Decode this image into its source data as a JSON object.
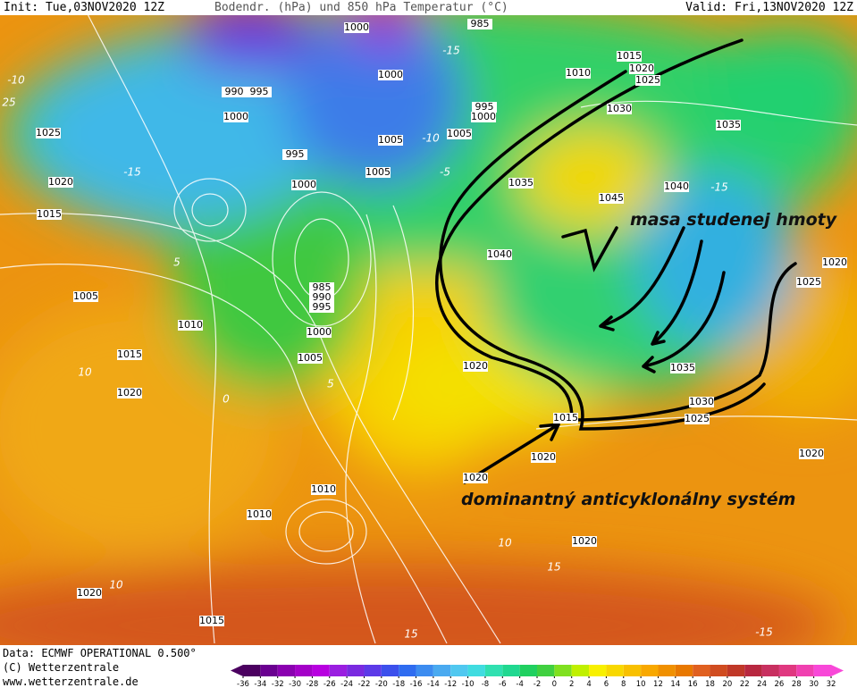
{
  "header": {
    "init": "Init: Tue,03NOV2020 12Z",
    "title": "Bodendr. (hPa) und 850 hPa Temperatur (°C)",
    "valid": "Valid: Fri,13NOV2020 12Z"
  },
  "isobar_labels": [
    "985",
    "1000",
    "1000",
    "1010",
    "1015",
    "1020",
    "1025",
    "990",
    "995",
    "1000",
    "995",
    "1000",
    "1030",
    "1035",
    "1025",
    "1005",
    "1005",
    "995",
    "1005",
    "1000",
    "1020",
    "1035",
    "1040",
    "1045",
    "1015",
    "1040",
    "1020",
    "1025",
    "985",
    "990",
    "995",
    "1005",
    "1010",
    "1000",
    "1015",
    "1005",
    "1020",
    "1035",
    "1020",
    "1030",
    "1025",
    "1015",
    "1020",
    "1020",
    "1020",
    "1010",
    "1010",
    "1020",
    "1020",
    "1015"
  ],
  "isotherm_labels": [
    "-10",
    "-10",
    "-15",
    "-15",
    "-5",
    "5",
    "0",
    "5",
    "10",
    "10",
    "10",
    "15",
    "15",
    "-15",
    "25",
    "-15"
  ],
  "annotations": {
    "cold_mass": "masa studenej hmoty",
    "anticyclone": "dominantný anticyklonálny systém"
  },
  "footer": {
    "data": "Data: ECMWF OPERATIONAL 0.500°",
    "copyright": "(C) Wetterzentrale",
    "url": "www.wetterzentrale.de"
  },
  "colorbar": {
    "ticks": [
      -36,
      -34,
      -32,
      -30,
      -28,
      -26,
      -24,
      -22,
      -20,
      -18,
      -16,
      -14,
      -12,
      -10,
      -8,
      -6,
      -4,
      -2,
      0,
      2,
      4,
      6,
      8,
      10,
      12,
      14,
      16,
      18,
      20,
      22,
      24,
      26,
      28,
      30,
      32
    ],
    "colors": [
      "#4b0060",
      "#6a0090",
      "#8a00b0",
      "#a400c8",
      "#b800e0",
      "#9a1ee0",
      "#7a2ae0",
      "#5c3ae8",
      "#3c50ec",
      "#2f6cf0",
      "#3c8cf0",
      "#4aaaf0",
      "#50c8f0",
      "#40dce0",
      "#30e0b0",
      "#20d890",
      "#20d060",
      "#40d040",
      "#80e020",
      "#c0f000",
      "#f8f000",
      "#f8d800",
      "#f8c000",
      "#f8a800",
      "#f09000",
      "#e87800",
      "#e06020",
      "#d04c20",
      "#c03828",
      "#b82840",
      "#c83060",
      "#e03880",
      "#f040b0",
      "#f848d8"
    ]
  }
}
